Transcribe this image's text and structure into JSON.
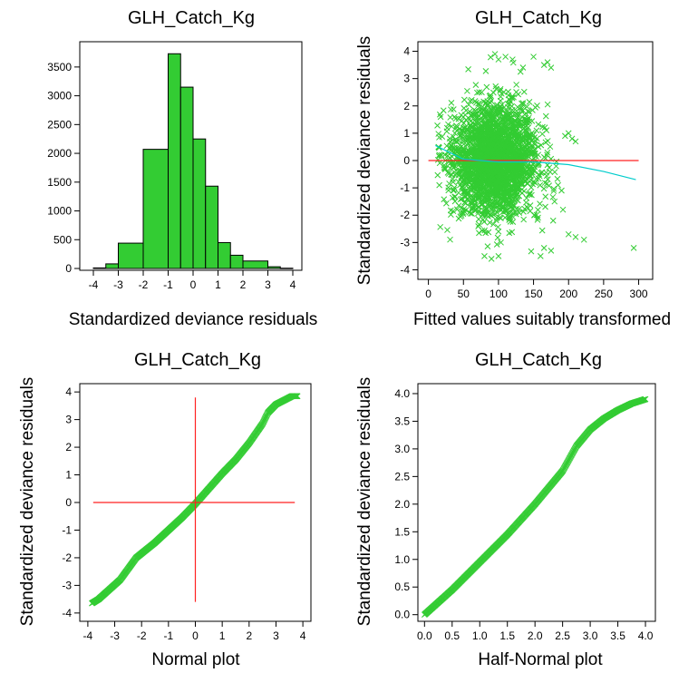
{
  "colors": {
    "fill": "#33cc33",
    "points": "#33cc33",
    "ref_line": "#ff2222",
    "smooth_line": "#00cccc",
    "axis": "#000000"
  },
  "chart_data": [
    {
      "type": "bar",
      "title": "GLH_Catch_Kg",
      "xlabel": "Standardized deviance residuals",
      "ylabel": "",
      "bin_edges": [
        -4,
        -3.5,
        -3,
        -2,
        -1,
        -0.5,
        0,
        0.5,
        1,
        1.5,
        2,
        3,
        3.5,
        4
      ],
      "values": [
        10,
        80,
        440,
        2070,
        3730,
        3150,
        2250,
        1430,
        450,
        230,
        130,
        30,
        5
      ],
      "xlim": [
        -4,
        4
      ],
      "ylim": [
        0,
        3750
      ],
      "xticks": [
        "-4",
        "-3",
        "-2",
        "-1",
        "0",
        "1",
        "2",
        "3",
        "4"
      ],
      "yticks": [
        "0",
        "500",
        "1000",
        "1500",
        "2000",
        "2500",
        "3000",
        "3500"
      ]
    },
    {
      "type": "scatter",
      "title": "GLH_Catch_Kg",
      "xlabel": "Fitted values suitably transformed",
      "ylabel": "Standardized deviance residuals",
      "xlim": [
        0,
        300
      ],
      "ylim": [
        -4,
        4
      ],
      "xticks": [
        "0",
        "50",
        "100",
        "150",
        "200",
        "250",
        "300"
      ],
      "yticks": [
        "-4",
        "-3",
        "-2",
        "-1",
        "0",
        "1",
        "2",
        "3",
        "4"
      ],
      "point_cloud": {
        "x_center": 95,
        "x_spread": 30,
        "y_spread": 1.0,
        "n": 2500
      },
      "outliers": [
        [
          150,
          3.8
        ],
        [
          165,
          3.5
        ],
        [
          175,
          3.4
        ],
        [
          170,
          3.6
        ],
        [
          200,
          1.0
        ],
        [
          205,
          0.8
        ],
        [
          195,
          0.9
        ],
        [
          210,
          0.7
        ],
        [
          200,
          -2.7
        ],
        [
          210,
          -2.8
        ],
        [
          222,
          -2.9
        ],
        [
          165,
          -3.2
        ],
        [
          175,
          -3.3
        ],
        [
          160,
          -3.5
        ],
        [
          293,
          -3.2
        ],
        [
          185,
          -0.9
        ],
        [
          190,
          -1.1
        ],
        [
          180,
          -1.5
        ],
        [
          178,
          -2.2
        ],
        [
          192,
          -1.8
        ],
        [
          90,
          -3.6
        ],
        [
          100,
          -3.5
        ],
        [
          80,
          -3.5
        ],
        [
          95,
          3.9
        ],
        [
          100,
          3.7
        ],
        [
          120,
          3.7
        ],
        [
          110,
          3.8
        ]
      ],
      "reference_line": {
        "y": 0,
        "x": [
          0,
          300
        ]
      },
      "smooth_line": {
        "x": [
          10,
          50,
          100,
          150,
          200,
          250,
          296
        ],
        "y": [
          0.55,
          0.05,
          -0.05,
          -0.05,
          -0.15,
          -0.4,
          -0.7
        ]
      }
    },
    {
      "type": "scatter",
      "title": "GLH_Catch_Kg",
      "xlabel": "Normal plot",
      "ylabel": "Standardized deviance residuals",
      "xlim": [
        -4,
        4
      ],
      "ylim": [
        -4,
        4
      ],
      "xticks": [
        "-4",
        "-3",
        "-2",
        "-1",
        "0",
        "1",
        "2",
        "3",
        "4"
      ],
      "yticks": [
        "-4",
        "-3",
        "-2",
        "-1",
        "0",
        "1",
        "2",
        "3",
        "4"
      ],
      "curve": {
        "x": [
          -3.85,
          -3.6,
          -3.2,
          -2.8,
          -2.5,
          -2.2,
          -1.5,
          -1.0,
          -0.5,
          0.0,
          0.5,
          1.0,
          1.5,
          2.0,
          2.5,
          2.7,
          3.0,
          3.3,
          3.6,
          3.8
        ],
        "y": [
          -3.65,
          -3.5,
          -3.15,
          -2.8,
          -2.4,
          -2.0,
          -1.45,
          -1.0,
          -0.55,
          -0.05,
          0.5,
          1.05,
          1.55,
          2.15,
          2.85,
          3.25,
          3.55,
          3.7,
          3.85,
          3.85
        ]
      },
      "reference_lines": {
        "h": 0,
        "v": 0,
        "h_extent": [
          -3.8,
          3.7
        ],
        "v_extent": [
          -3.6,
          3.8
        ]
      }
    },
    {
      "type": "scatter",
      "title": "GLH_Catch_Kg",
      "xlabel": "Half-Normal plot",
      "ylabel": "Standardized deviance residuals",
      "xlim": [
        0,
        4
      ],
      "ylim": [
        0,
        4
      ],
      "xticks": [
        "0.0",
        "0.5",
        "1.0",
        "1.5",
        "2.0",
        "2.5",
        "3.0",
        "3.5",
        "4.0"
      ],
      "yticks": [
        "0.0",
        "0.5",
        "1.0",
        "1.5",
        "2.0",
        "2.5",
        "3.0",
        "3.5",
        "4.0"
      ],
      "curve": {
        "x": [
          0.0,
          0.5,
          1.0,
          1.5,
          2.0,
          2.5,
          2.75,
          3.0,
          3.25,
          3.5,
          3.75,
          4.0
        ],
        "y": [
          0.0,
          0.45,
          0.95,
          1.45,
          2.0,
          2.6,
          3.05,
          3.35,
          3.55,
          3.7,
          3.82,
          3.9
        ]
      }
    }
  ]
}
